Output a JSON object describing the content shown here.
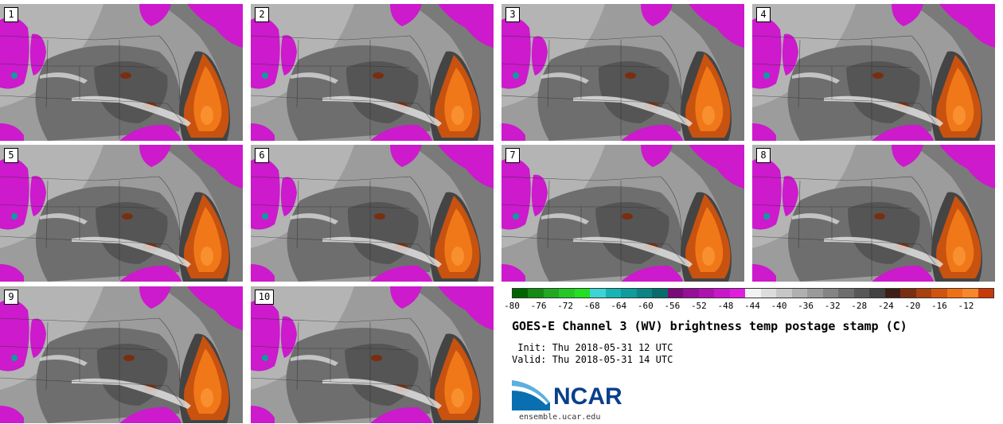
{
  "panels": [
    {
      "label": "1"
    },
    {
      "label": "2"
    },
    {
      "label": "3"
    },
    {
      "label": "4"
    },
    {
      "label": "5"
    },
    {
      "label": "6"
    },
    {
      "label": "7"
    },
    {
      "label": "8"
    },
    {
      "label": "9"
    },
    {
      "label": "10"
    }
  ],
  "colorbar": {
    "colors": [
      "#006400",
      "#138a13",
      "#22a822",
      "#24c824",
      "#23e023",
      "#3cd4d4",
      "#18b4b4",
      "#0e9c9c",
      "#0a8484",
      "#086c6c",
      "#7a0a7a",
      "#960f96",
      "#b012b0",
      "#c918c9",
      "#e01ee0",
      "#f2f2f2",
      "#dcdcdc",
      "#c6c6c6",
      "#b0b0b0",
      "#9a9a9a",
      "#848484",
      "#6e6e6e",
      "#585858",
      "#424242",
      "#3c2015",
      "#7a2e10",
      "#a8400f",
      "#d0540f",
      "#f07018",
      "#f8862a",
      "#c83a0a"
    ],
    "tick_labels": [
      "-80",
      "-76",
      "-72",
      "-68",
      "-64",
      "-60",
      "-56",
      "-52",
      "-48",
      "-44",
      "-40",
      "-36",
      "-32",
      "-28",
      "-24",
      "-20",
      "-16",
      "-12"
    ]
  },
  "title": "GOES-E Channel 3 (WV) brightness temp postage stamp (C)",
  "init": " Init: Thu 2018-05-31 12 UTC",
  "valid": "Valid: Thu 2018-05-31 14 UTC",
  "logo": {
    "name": "NCAR",
    "url_text": "ensemble.ucar.edu"
  }
}
